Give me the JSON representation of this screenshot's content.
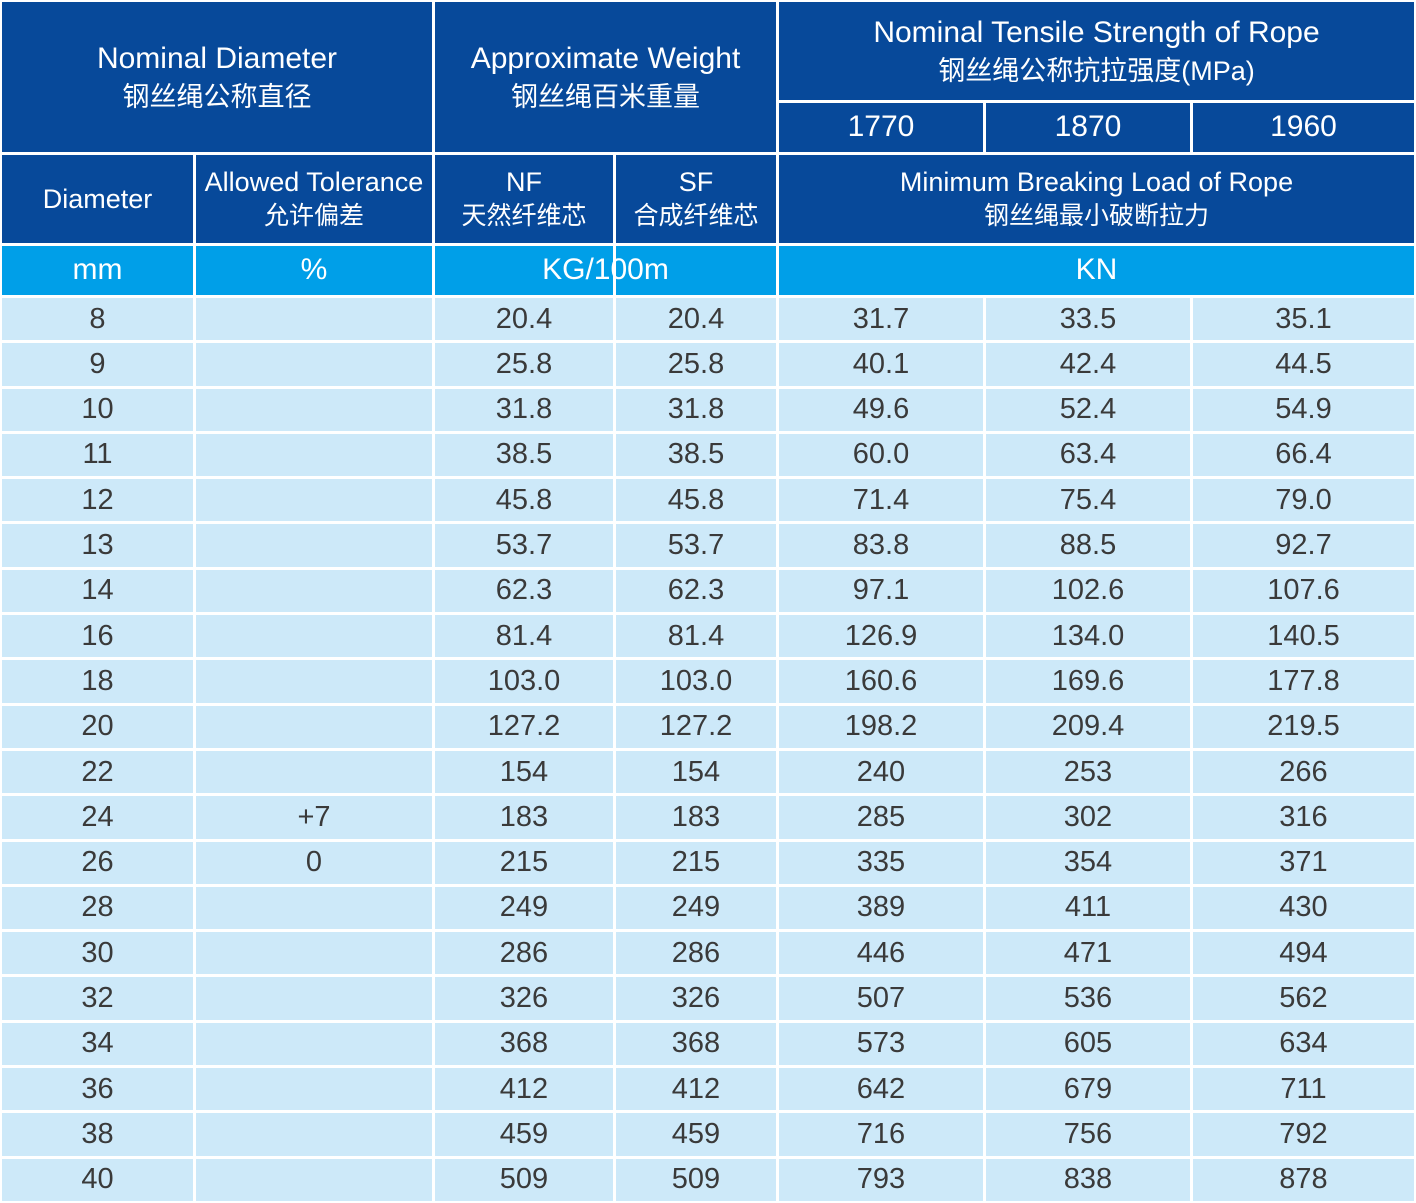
{
  "table": {
    "header": {
      "nominal_diameter_en": "Nominal Diameter",
      "nominal_diameter_zh": "钢丝绳公称直径",
      "approx_weight_en": "Approximate Weight",
      "approx_weight_zh": "钢丝绳百米重量",
      "tensile_strength_en": "Nominal Tensile Strength of Rope",
      "tensile_strength_zh": "钢丝绳公称抗拉强度(MPa)",
      "strength_grades": [
        "1770",
        "1870",
        "1960"
      ],
      "diameter_label": "Diameter",
      "tolerance_en": "Allowed Tolerance",
      "tolerance_zh": "允许偏差",
      "nf_en": "NF",
      "nf_zh": "天然纤维芯",
      "sf_en": "SF",
      "sf_zh": "合成纤维芯",
      "breaking_load_en": "Minimum Breaking Load of Rope",
      "breaking_load_zh": "钢丝绳最小破断拉力",
      "unit_mm": "mm",
      "unit_percent": "%",
      "unit_weight": "KG/100m",
      "unit_load": "KN"
    },
    "rows": [
      {
        "diameter": "8",
        "tolerance": "",
        "nf": "20.4",
        "sf": "20.4",
        "kn_1770": "31.7",
        "kn_1870": "33.5",
        "kn_1960": "35.1"
      },
      {
        "diameter": "9",
        "tolerance": "",
        "nf": "25.8",
        "sf": "25.8",
        "kn_1770": "40.1",
        "kn_1870": "42.4",
        "kn_1960": "44.5"
      },
      {
        "diameter": "10",
        "tolerance": "",
        "nf": "31.8",
        "sf": "31.8",
        "kn_1770": "49.6",
        "kn_1870": "52.4",
        "kn_1960": "54.9"
      },
      {
        "diameter": "11",
        "tolerance": "",
        "nf": "38.5",
        "sf": "38.5",
        "kn_1770": "60.0",
        "kn_1870": "63.4",
        "kn_1960": "66.4"
      },
      {
        "diameter": "12",
        "tolerance": "",
        "nf": "45.8",
        "sf": "45.8",
        "kn_1770": "71.4",
        "kn_1870": "75.4",
        "kn_1960": "79.0"
      },
      {
        "diameter": "13",
        "tolerance": "",
        "nf": "53.7",
        "sf": "53.7",
        "kn_1770": "83.8",
        "kn_1870": "88.5",
        "kn_1960": "92.7"
      },
      {
        "diameter": "14",
        "tolerance": "",
        "nf": "62.3",
        "sf": "62.3",
        "kn_1770": "97.1",
        "kn_1870": "102.6",
        "kn_1960": "107.6"
      },
      {
        "diameter": "16",
        "tolerance": "",
        "nf": "81.4",
        "sf": "81.4",
        "kn_1770": "126.9",
        "kn_1870": "134.0",
        "kn_1960": "140.5"
      },
      {
        "diameter": "18",
        "tolerance": "",
        "nf": "103.0",
        "sf": "103.0",
        "kn_1770": "160.6",
        "kn_1870": "169.6",
        "kn_1960": "177.8"
      },
      {
        "diameter": "20",
        "tolerance": "",
        "nf": "127.2",
        "sf": "127.2",
        "kn_1770": "198.2",
        "kn_1870": "209.4",
        "kn_1960": "219.5"
      },
      {
        "diameter": "22",
        "tolerance": "",
        "nf": "154",
        "sf": "154",
        "kn_1770": "240",
        "kn_1870": "253",
        "kn_1960": "266"
      },
      {
        "diameter": "24",
        "tolerance": "+7",
        "nf": "183",
        "sf": "183",
        "kn_1770": "285",
        "kn_1870": "302",
        "kn_1960": "316"
      },
      {
        "diameter": "26",
        "tolerance": "0",
        "nf": "215",
        "sf": "215",
        "kn_1770": "335",
        "kn_1870": "354",
        "kn_1960": "371"
      },
      {
        "diameter": "28",
        "tolerance": "",
        "nf": "249",
        "sf": "249",
        "kn_1770": "389",
        "kn_1870": "411",
        "kn_1960": "430"
      },
      {
        "diameter": "30",
        "tolerance": "",
        "nf": "286",
        "sf": "286",
        "kn_1770": "446",
        "kn_1870": "471",
        "kn_1960": "494"
      },
      {
        "diameter": "32",
        "tolerance": "",
        "nf": "326",
        "sf": "326",
        "kn_1770": "507",
        "kn_1870": "536",
        "kn_1960": "562"
      },
      {
        "diameter": "34",
        "tolerance": "",
        "nf": "368",
        "sf": "368",
        "kn_1770": "573",
        "kn_1870": "605",
        "kn_1960": "634"
      },
      {
        "diameter": "36",
        "tolerance": "",
        "nf": "412",
        "sf": "412",
        "kn_1770": "642",
        "kn_1870": "679",
        "kn_1960": "711"
      },
      {
        "diameter": "38",
        "tolerance": "",
        "nf": "459",
        "sf": "459",
        "kn_1770": "716",
        "kn_1870": "756",
        "kn_1960": "792"
      },
      {
        "diameter": "40",
        "tolerance": "",
        "nf": "509",
        "sf": "509",
        "kn_1770": "793",
        "kn_1870": "838",
        "kn_1960": "878"
      }
    ]
  },
  "colors": {
    "header_blue": "#07499a",
    "unit_row_blue": "#009fe8",
    "data_row_blue": "#cde9f9",
    "grid_white": "#ffffff",
    "data_text": "#3a3a3a",
    "header_text": "#ffffff"
  }
}
